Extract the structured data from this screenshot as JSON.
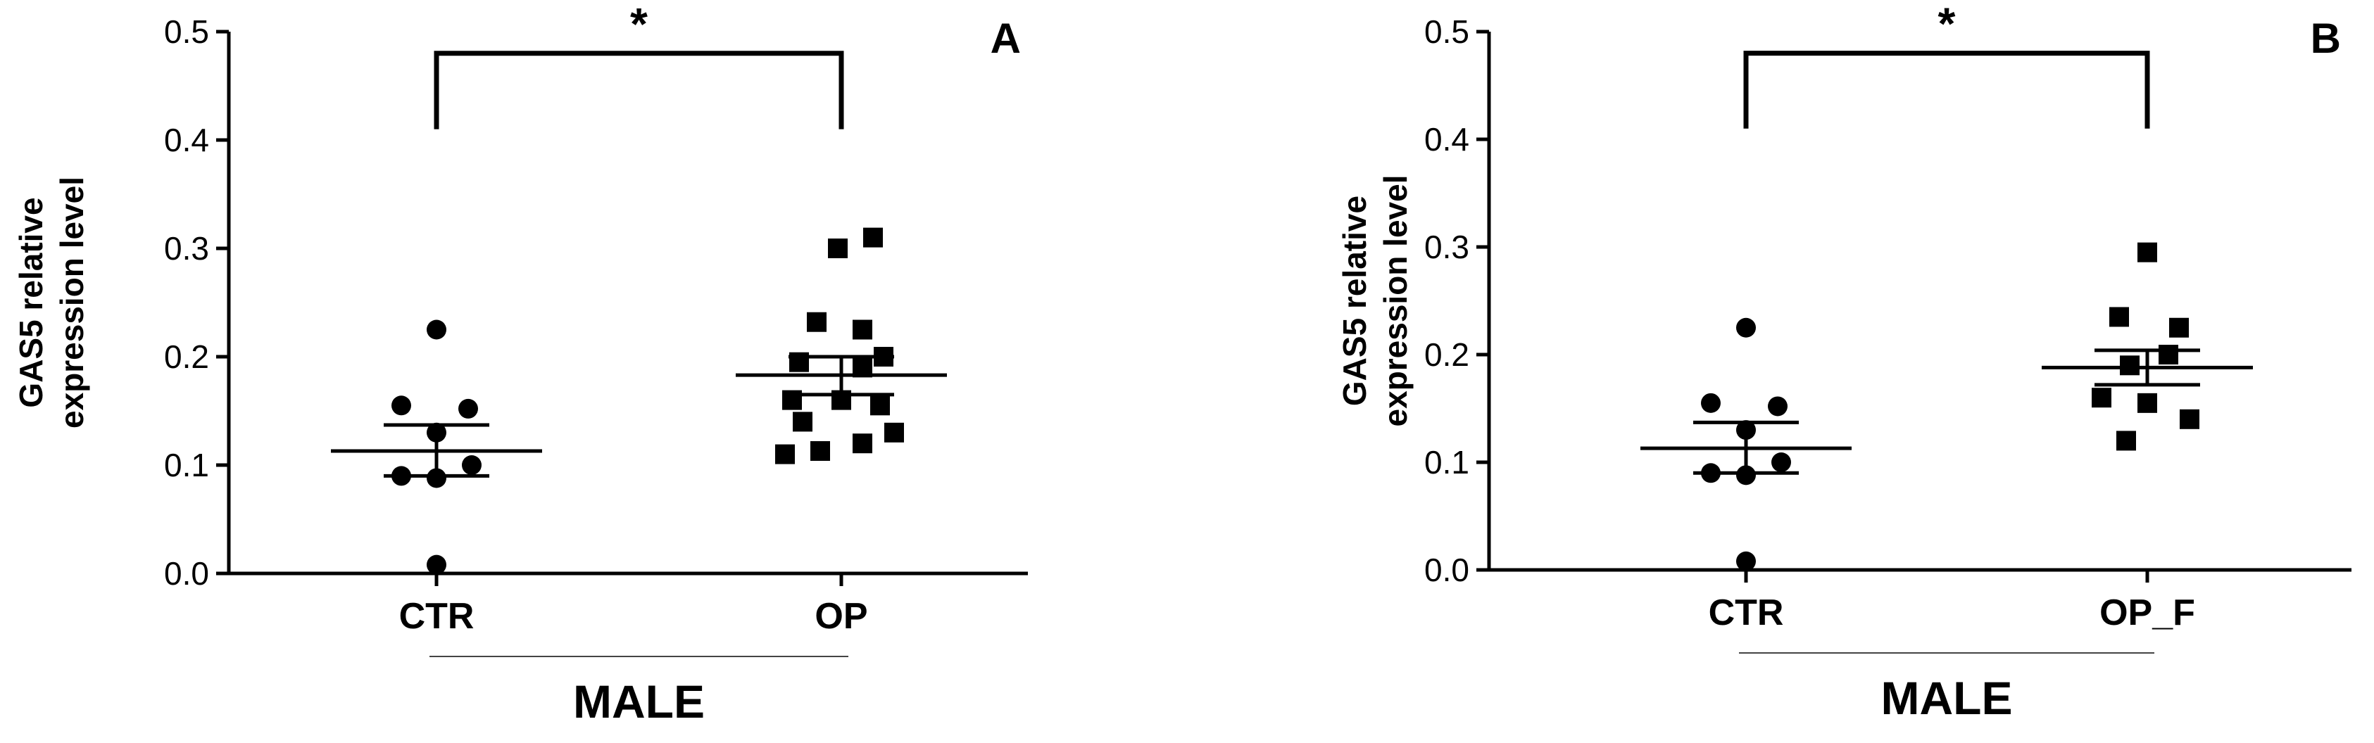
{
  "chart_data": [
    {
      "type": "scatter",
      "panel_label": "A",
      "ylabel_lines": [
        "GAS5 relative",
        "expression level"
      ],
      "ylim": [
        0,
        0.5
      ],
      "yticks": [
        "0.0",
        "0.1",
        "0.2",
        "0.3",
        "0.4",
        "0.5"
      ],
      "categories": [
        "CTR",
        "OP"
      ],
      "group_label": "MALE",
      "significance": "*",
      "grid": false,
      "series": [
        {
          "category": "CTR",
          "marker": "circle",
          "points": [
            0.225,
            0.155,
            0.152,
            0.13,
            0.1,
            0.09,
            0.088,
            0.008
          ],
          "mean": 0.113,
          "sem_low": 0.09,
          "sem_high": 0.137
        },
        {
          "category": "OP",
          "marker": "square",
          "points": [
            0.31,
            0.3,
            0.232,
            0.225,
            0.2,
            0.195,
            0.19,
            0.16,
            0.16,
            0.155,
            0.14,
            0.13,
            0.12,
            0.113,
            0.11
          ],
          "mean": 0.183,
          "sem_low": 0.165,
          "sem_high": 0.2
        }
      ]
    },
    {
      "type": "scatter",
      "panel_label": "B",
      "ylabel_lines": [
        "GAS5 relative",
        "expression level"
      ],
      "ylim": [
        0,
        0.5
      ],
      "yticks": [
        "0.0",
        "0.1",
        "0.2",
        "0.3",
        "0.4",
        "0.5"
      ],
      "categories": [
        "CTR",
        "OP_F"
      ],
      "group_label": "MALE",
      "significance": "*",
      "grid": false,
      "series": [
        {
          "category": "CTR",
          "marker": "circle",
          "points": [
            0.225,
            0.155,
            0.152,
            0.13,
            0.1,
            0.09,
            0.088,
            0.008
          ],
          "mean": 0.113,
          "sem_low": 0.09,
          "sem_high": 0.137
        },
        {
          "category": "OP_F",
          "marker": "square",
          "points": [
            0.295,
            0.235,
            0.225,
            0.2,
            0.19,
            0.16,
            0.155,
            0.14,
            0.12
          ],
          "mean": 0.188,
          "sem_low": 0.172,
          "sem_high": 0.204
        }
      ]
    }
  ]
}
